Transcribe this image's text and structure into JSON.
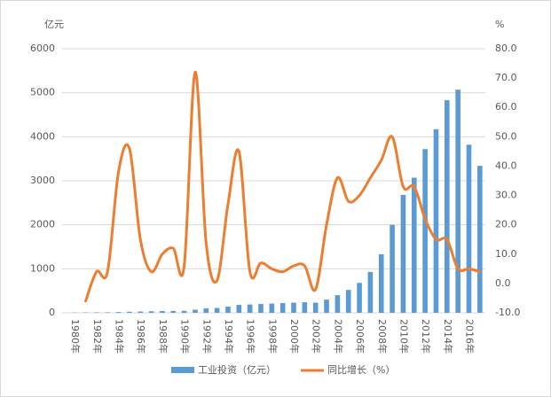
{
  "chart_data": {
    "type": "bar+line",
    "y_label": "亿元",
    "y2_label": "%",
    "categories": [
      "1980年",
      null,
      "1982年",
      null,
      "1984年",
      null,
      "1986年",
      null,
      "1988年",
      null,
      "1990年",
      null,
      "1992年",
      null,
      "1994年",
      null,
      "1996年",
      null,
      "1998年",
      null,
      "2000年",
      null,
      "2002年",
      null,
      "2004年",
      null,
      "2006年",
      null,
      "2008年",
      null,
      "2010年",
      null,
      "2012年",
      null,
      "2014年",
      null,
      "2016年",
      null
    ],
    "series": [
      {
        "name": "工业投资（亿元）",
        "type": "bar",
        "color": "#5b9bd5",
        "values": [
          5,
          8,
          10,
          12,
          18,
          25,
          30,
          35,
          40,
          42,
          45,
          70,
          100,
          110,
          140,
          180,
          190,
          200,
          210,
          220,
          230,
          240,
          230,
          300,
          400,
          520,
          680,
          930,
          1330,
          2000,
          2680,
          3070,
          3720,
          4170,
          4830,
          5070,
          3820,
          3340
        ]
      },
      {
        "name": "同比增长（%）",
        "type": "line",
        "axis": "y2",
        "color": "#ed7d31",
        "values": [
          null,
          -6,
          4,
          4,
          38,
          46,
          15,
          4,
          10,
          12,
          6,
          72,
          14,
          1,
          27,
          45,
          4,
          7,
          5,
          4,
          6,
          6,
          -2,
          20,
          36,
          28,
          30,
          36,
          42,
          50,
          33,
          33,
          22,
          15,
          15,
          5,
          5,
          4
        ]
      }
    ],
    "ylim": [
      0,
      6000
    ],
    "yticks": [
      0,
      1000,
      2000,
      3000,
      4000,
      5000,
      6000
    ],
    "y2lim": [
      -10,
      80
    ],
    "y2ticks": [
      {
        "value": -10,
        "label": "-10.0"
      },
      {
        "value": 0,
        "label": "0.0"
      },
      {
        "value": 10,
        "label": "10.0"
      },
      {
        "value": 20,
        "label": "20.0"
      },
      {
        "value": 30,
        "label": "30.0"
      },
      {
        "value": 40,
        "label": "40.0"
      },
      {
        "value": 50,
        "label": "50.0"
      },
      {
        "value": 60,
        "label": "60.0"
      },
      {
        "value": 70,
        "label": "70.0"
      },
      {
        "value": 80,
        "label": "80.0"
      }
    ],
    "grid": true,
    "legend": "bottom"
  }
}
